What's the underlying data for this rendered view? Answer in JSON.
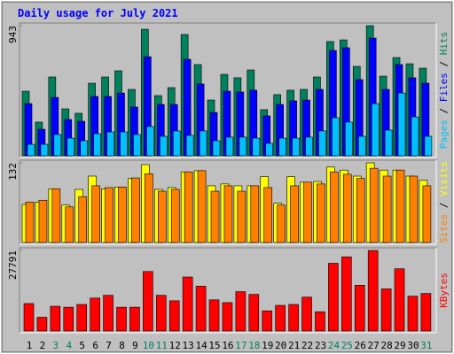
{
  "title": "Daily usage for July 2021",
  "legend_separator": " / ",
  "chart_data": [
    {
      "type": "bar",
      "ylim": [
        0,
        943
      ],
      "yticks": [
        943
      ],
      "series": [
        {
          "name": "Hits",
          "color": "#00805c",
          "values": [
            468,
            244,
            571,
            340,
            308,
            526,
            571,
            616,
            481,
            917,
            436,
            494,
            879,
            661,
            404,
            590,
            565,
            622,
            334,
            443,
            475,
            481,
            571,
            828,
            840,
            648,
            943,
            577,
            712,
            667,
            635
          ]
        },
        {
          "name": "Files",
          "color": "#0000ff",
          "values": [
            378,
            192,
            423,
            263,
            250,
            430,
            430,
            455,
            353,
            718,
            372,
            372,
            699,
            520,
            314,
            468,
            462,
            475,
            289,
            372,
            398,
            404,
            481,
            763,
            783,
            552,
            853,
            481,
            661,
            565,
            526
          ]
        },
        {
          "name": "Pages",
          "color": "#00c0ff",
          "values": [
            83,
            83,
            154,
            128,
            109,
            160,
            173,
            173,
            154,
            212,
            141,
            180,
            148,
            180,
            109,
            135,
            135,
            128,
            90,
            128,
            128,
            135,
            180,
            276,
            244,
            141,
            378,
            186,
            455,
            282,
            141
          ]
        }
      ]
    },
    {
      "type": "bar",
      "ylim": [
        0,
        132
      ],
      "yticks": [
        132
      ],
      "series": [
        {
          "name": "Visits",
          "color": "#ffff00",
          "values": [
            63,
            67,
            89,
            62,
            88,
            110,
            89,
            92,
            106,
            129,
            88,
            91,
            117,
            119,
            94,
            97,
            94,
            94,
            109,
            65,
            109,
            100,
            101,
            125,
            120,
            110,
            132,
            120,
            120,
            110,
            103
          ]
        },
        {
          "name": "Sites",
          "color": "#ff8000",
          "values": [
            67,
            70,
            89,
            59,
            76,
            94,
            91,
            92,
            107,
            114,
            85,
            88,
            117,
            119,
            85,
            94,
            85,
            94,
            91,
            62,
            94,
            100,
            97,
            117,
            113,
            106,
            123,
            110,
            120,
            110,
            94
          ]
        }
      ]
    },
    {
      "type": "bar",
      "ylim": [
        0,
        27791
      ],
      "yticks": [
        27791
      ],
      "categories": [
        "1",
        "2",
        "3",
        "4",
        "5",
        "6",
        "7",
        "8",
        "9",
        "10",
        "11",
        "12",
        "13",
        "14",
        "15",
        "16",
        "17",
        "18",
        "19",
        "20",
        "21",
        "22",
        "23",
        "24",
        "25",
        "26",
        "27",
        "28",
        "29",
        "30",
        "31"
      ],
      "category_colors": [
        "#000000",
        "#000000",
        "#00805c",
        "#00805c",
        "#000000",
        "#000000",
        "#000000",
        "#000000",
        "#000000",
        "#00805c",
        "#00805c",
        "#000000",
        "#000000",
        "#000000",
        "#000000",
        "#000000",
        "#00805c",
        "#00805c",
        "#000000",
        "#000000",
        "#000000",
        "#000000",
        "#000000",
        "#00805c",
        "#00805c",
        "#000000",
        "#000000",
        "#000000",
        "#000000",
        "#000000",
        "#00805c"
      ],
      "series": [
        {
          "name": "KBytes",
          "color": "#ff0000",
          "values": [
            9474,
            4737,
            8527,
            8211,
            9158,
            11369,
            12316,
            8211,
            8211,
            20527,
            12316,
            10421,
            18632,
            15474,
            10737,
            9790,
            13579,
            12632,
            6948,
            8842,
            9158,
            11685,
            6632,
            23369,
            25579,
            15790,
            27791,
            14527,
            21474,
            12000,
            12948
          ]
        }
      ]
    }
  ]
}
